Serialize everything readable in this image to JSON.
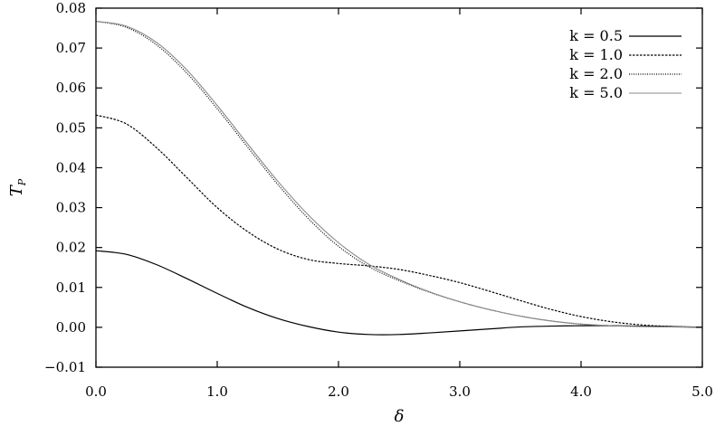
{
  "chart_data": {
    "type": "line",
    "title": "",
    "xlabel": "δ",
    "ylabel": "T",
    "ylabel_subscript": "P",
    "xlim": [
      0.0,
      5.0
    ],
    "ylim": [
      -0.01,
      0.08
    ],
    "x_ticks": [
      {
        "value": 0.0,
        "label": "0.0"
      },
      {
        "value": 1.0,
        "label": "1.0"
      },
      {
        "value": 2.0,
        "label": "2.0"
      },
      {
        "value": 3.0,
        "label": "3.0"
      },
      {
        "value": 4.0,
        "label": "4.0"
      },
      {
        "value": 5.0,
        "label": "5.0"
      }
    ],
    "y_ticks": [
      {
        "value": -0.01,
        "label": "−0.01"
      },
      {
        "value": 0.0,
        "label": "0.00"
      },
      {
        "value": 0.01,
        "label": "0.01"
      },
      {
        "value": 0.02,
        "label": "0.02"
      },
      {
        "value": 0.03,
        "label": "0.03"
      },
      {
        "value": 0.04,
        "label": "0.04"
      },
      {
        "value": 0.05,
        "label": "0.05"
      },
      {
        "value": 0.06,
        "label": "0.06"
      },
      {
        "value": 0.07,
        "label": "0.07"
      },
      {
        "value": 0.08,
        "label": "0.08"
      }
    ],
    "grid": false,
    "legend_position": "top-right",
    "series": [
      {
        "name": "k = 0.5",
        "style": "solid",
        "color": "#000000",
        "x": [
          0.0,
          0.25,
          0.5,
          0.75,
          1.0,
          1.25,
          1.5,
          1.75,
          2.0,
          2.25,
          2.5,
          2.75,
          3.0,
          3.25,
          3.5,
          3.75,
          4.0,
          4.25,
          4.5,
          4.75,
          5.0
        ],
        "y": [
          0.0192,
          0.0183,
          0.0157,
          0.0122,
          0.0085,
          0.005,
          0.0022,
          0.0002,
          -0.0012,
          -0.0018,
          -0.0018,
          -0.0014,
          -0.0009,
          -0.0004,
          0.0001,
          0.0003,
          0.0004,
          0.0004,
          0.0003,
          0.0002,
          0.0
        ]
      },
      {
        "name": "k = 1.0",
        "style": "dashed",
        "color": "#000000",
        "x": [
          0.0,
          0.25,
          0.5,
          0.75,
          1.0,
          1.25,
          1.5,
          1.75,
          2.0,
          2.25,
          2.5,
          2.75,
          3.0,
          3.25,
          3.5,
          3.75,
          4.0,
          4.25,
          4.5,
          4.75,
          5.0
        ],
        "y": [
          0.0532,
          0.051,
          0.045,
          0.0375,
          0.03,
          0.024,
          0.0196,
          0.017,
          0.016,
          0.0154,
          0.0145,
          0.013,
          0.0112,
          0.009,
          0.0067,
          0.0045,
          0.0027,
          0.0014,
          0.0006,
          0.0002,
          0.0
        ]
      },
      {
        "name": "k = 2.0",
        "style": "dotted",
        "color": "#000000",
        "x": [
          0.0,
          0.25,
          0.5,
          0.75,
          1.0,
          1.25,
          1.5,
          1.75,
          2.0,
          2.25,
          2.5,
          2.75,
          3.0,
          3.25,
          3.5,
          3.75,
          4.0,
          4.25,
          4.5,
          4.75,
          5.0
        ],
        "y": [
          0.0767,
          0.0752,
          0.0708,
          0.0637,
          0.0548,
          0.0452,
          0.0358,
          0.0273,
          0.0203,
          0.0152,
          0.0117,
          0.0088,
          0.0064,
          0.0044,
          0.0028,
          0.0016,
          0.0008,
          0.0004,
          0.0002,
          0.0001,
          0.0
        ]
      },
      {
        "name": "k = 5.0",
        "style": "solid-thin",
        "color": "#888888",
        "x": [
          0.0,
          0.25,
          0.5,
          0.75,
          1.0,
          1.25,
          1.5,
          1.75,
          2.0,
          2.25,
          2.5,
          2.75,
          3.0,
          3.25,
          3.5,
          3.75,
          4.0,
          4.25,
          4.5,
          4.75,
          5.0
        ],
        "y": [
          0.0767,
          0.0755,
          0.0714,
          0.0645,
          0.0556,
          0.046,
          0.0366,
          0.0282,
          0.0212,
          0.0158,
          0.012,
          0.0089,
          0.0064,
          0.0044,
          0.0028,
          0.0016,
          0.0008,
          0.0004,
          0.0002,
          0.0001,
          0.0
        ]
      }
    ]
  }
}
